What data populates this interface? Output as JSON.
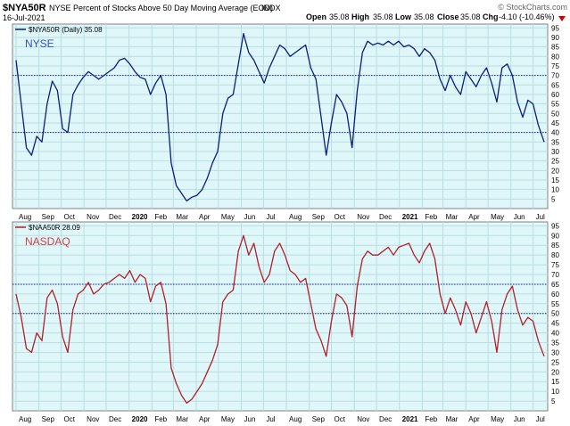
{
  "header": {
    "symbol": "$NYA50R",
    "description": "NYSE Percent of Stocks Above 50 Day Moving Average (EOD)",
    "exchange": "INDX",
    "date": "16-Jul-2021",
    "copyright": "© StockCharts.com",
    "quote": {
      "open_label": "Open",
      "open": "35.08",
      "high_label": "High",
      "high": "35.08",
      "low_label": "Low",
      "low": "35.08",
      "close_label": "Close",
      "close": "35.08",
      "chg_label": "Chg",
      "chg": "-4.10 (-10.46%)"
    }
  },
  "colors": {
    "panel_bg": "#e0f7fa",
    "nyse_line": "#0b1f7a",
    "nasdaq_line": "#b0202a",
    "grid": "#b8dde2",
    "reference_line": "#1a237e",
    "label_nyse": "#3050c8",
    "label_nasdaq": "#d04040"
  },
  "chart_data": [
    {
      "type": "line",
      "legend_text": "$NYA50R (Daily) 35.08",
      "panel_label": "NYSE",
      "y_ticks": [
        5,
        10,
        15,
        20,
        25,
        30,
        35,
        40,
        45,
        50,
        55,
        60,
        65,
        70,
        75,
        80,
        85,
        90,
        95
      ],
      "ylim": [
        0,
        97
      ],
      "reference_lines": [
        40,
        70
      ],
      "grid": true,
      "x_labels": [
        "Aug",
        "Sep",
        "Oct",
        "Nov",
        "Dec",
        "2020",
        "Feb",
        "Mar",
        "Apr",
        "May",
        "Jun",
        "Jul",
        "Aug",
        "Sep",
        "Oct",
        "Nov",
        "Dec",
        "2021",
        "Feb",
        "Mar",
        "Apr",
        "May",
        "Jun",
        "Jul"
      ],
      "x_label_bold": [
        "2020",
        "2021"
      ],
      "x": [
        "2019-08-01",
        "2019-08-08",
        "2019-08-15",
        "2019-08-22",
        "2019-08-29",
        "2019-09-05",
        "2019-09-12",
        "2019-09-19",
        "2019-09-26",
        "2019-10-03",
        "2019-10-10",
        "2019-10-17",
        "2019-10-24",
        "2019-10-31",
        "2019-11-07",
        "2019-11-14",
        "2019-11-21",
        "2019-11-28",
        "2019-12-05",
        "2019-12-12",
        "2019-12-19",
        "2019-12-26",
        "2020-01-02",
        "2020-01-09",
        "2020-01-16",
        "2020-01-23",
        "2020-01-30",
        "2020-02-06",
        "2020-02-13",
        "2020-02-20",
        "2020-02-27",
        "2020-03-05",
        "2020-03-12",
        "2020-03-19",
        "2020-03-26",
        "2020-04-02",
        "2020-04-09",
        "2020-04-16",
        "2020-04-23",
        "2020-04-30",
        "2020-05-07",
        "2020-05-14",
        "2020-05-21",
        "2020-05-28",
        "2020-06-04",
        "2020-06-11",
        "2020-06-18",
        "2020-06-25",
        "2020-07-02",
        "2020-07-09",
        "2020-07-16",
        "2020-07-23",
        "2020-07-30",
        "2020-08-06",
        "2020-08-13",
        "2020-08-20",
        "2020-08-27",
        "2020-09-03",
        "2020-09-10",
        "2020-09-17",
        "2020-09-24",
        "2020-10-01",
        "2020-10-08",
        "2020-10-15",
        "2020-10-22",
        "2020-10-29",
        "2020-11-05",
        "2020-11-12",
        "2020-11-19",
        "2020-11-26",
        "2020-12-03",
        "2020-12-10",
        "2020-12-17",
        "2020-12-24",
        "2020-12-31",
        "2021-01-07",
        "2021-01-14",
        "2021-01-21",
        "2021-01-28",
        "2021-02-04",
        "2021-02-11",
        "2021-02-18",
        "2021-02-25",
        "2021-03-04",
        "2021-03-11",
        "2021-03-18",
        "2021-03-25",
        "2021-04-01",
        "2021-04-08",
        "2021-04-15",
        "2021-04-22",
        "2021-04-29",
        "2021-05-06",
        "2021-05-13",
        "2021-05-20",
        "2021-05-27",
        "2021-06-03",
        "2021-06-10",
        "2021-06-17",
        "2021-06-24",
        "2021-07-01",
        "2021-07-08",
        "2021-07-16"
      ],
      "values": [
        78,
        55,
        32,
        28,
        38,
        35,
        55,
        67,
        62,
        42,
        40,
        60,
        65,
        69,
        72,
        70,
        68,
        70,
        72,
        74,
        78,
        79,
        76,
        72,
        69,
        68,
        60,
        66,
        70,
        60,
        24,
        12,
        8,
        4,
        6,
        7,
        10,
        16,
        24,
        30,
        50,
        58,
        60,
        76,
        92,
        82,
        78,
        72,
        66,
        74,
        80,
        86,
        84,
        80,
        82,
        84,
        86,
        74,
        68,
        48,
        28,
        45,
        60,
        56,
        50,
        32,
        62,
        82,
        88,
        86,
        87,
        86,
        88,
        86,
        88,
        85,
        86,
        84,
        80,
        84,
        82,
        78,
        68,
        62,
        70,
        64,
        60,
        72,
        68,
        64,
        70,
        74,
        66,
        56,
        74,
        76,
        70,
        56,
        48,
        57,
        55,
        44,
        35
      ]
    },
    {
      "type": "line",
      "legend_text": "$NAA50R 28.09",
      "panel_label": "NASDAQ",
      "y_ticks": [
        5,
        10,
        15,
        20,
        25,
        30,
        35,
        40,
        45,
        50,
        55,
        60,
        65,
        70,
        75,
        80,
        85,
        90,
        95
      ],
      "ylim": [
        0,
        97
      ],
      "reference_lines": [
        50,
        65
      ],
      "grid": true,
      "x_labels": [
        "Aug",
        "Sep",
        "Oct",
        "Nov",
        "Dec",
        "2020",
        "Feb",
        "Mar",
        "Apr",
        "May",
        "Jun",
        "Jul",
        "Aug",
        "Sep",
        "Oct",
        "Nov",
        "Dec",
        "2021",
        "Feb",
        "Mar",
        "Apr",
        "May",
        "Jun",
        "Jul"
      ],
      "x_label_bold": [
        "2020",
        "2021"
      ],
      "x": [
        "2019-08-01",
        "2019-08-08",
        "2019-08-15",
        "2019-08-22",
        "2019-08-29",
        "2019-09-05",
        "2019-09-12",
        "2019-09-19",
        "2019-09-26",
        "2019-10-03",
        "2019-10-10",
        "2019-10-17",
        "2019-10-24",
        "2019-10-31",
        "2019-11-07",
        "2019-11-14",
        "2019-11-21",
        "2019-11-28",
        "2019-12-05",
        "2019-12-12",
        "2019-12-19",
        "2019-12-26",
        "2020-01-02",
        "2020-01-09",
        "2020-01-16",
        "2020-01-23",
        "2020-01-30",
        "2020-02-06",
        "2020-02-13",
        "2020-02-20",
        "2020-02-27",
        "2020-03-05",
        "2020-03-12",
        "2020-03-19",
        "2020-03-26",
        "2020-04-02",
        "2020-04-09",
        "2020-04-16",
        "2020-04-23",
        "2020-04-30",
        "2020-05-07",
        "2020-05-14",
        "2020-05-21",
        "2020-05-28",
        "2020-06-04",
        "2020-06-11",
        "2020-06-18",
        "2020-06-25",
        "2020-07-02",
        "2020-07-09",
        "2020-07-16",
        "2020-07-23",
        "2020-07-30",
        "2020-08-06",
        "2020-08-13",
        "2020-08-20",
        "2020-08-27",
        "2020-09-03",
        "2020-09-10",
        "2020-09-17",
        "2020-09-24",
        "2020-10-01",
        "2020-10-08",
        "2020-10-15",
        "2020-10-22",
        "2020-10-29",
        "2020-11-05",
        "2020-11-12",
        "2020-11-19",
        "2020-11-26",
        "2020-12-03",
        "2020-12-10",
        "2020-12-17",
        "2020-12-24",
        "2020-12-31",
        "2021-01-07",
        "2021-01-14",
        "2021-01-21",
        "2021-01-28",
        "2021-02-04",
        "2021-02-11",
        "2021-02-18",
        "2021-02-25",
        "2021-03-04",
        "2021-03-11",
        "2021-03-18",
        "2021-03-25",
        "2021-04-01",
        "2021-04-08",
        "2021-04-15",
        "2021-04-22",
        "2021-04-29",
        "2021-05-06",
        "2021-05-13",
        "2021-05-20",
        "2021-05-27",
        "2021-06-03",
        "2021-06-10",
        "2021-06-17",
        "2021-06-24",
        "2021-07-01",
        "2021-07-08",
        "2021-07-16"
      ],
      "values": [
        60,
        48,
        32,
        30,
        40,
        36,
        58,
        62,
        55,
        38,
        30,
        52,
        60,
        62,
        66,
        60,
        62,
        65,
        66,
        68,
        70,
        68,
        72,
        66,
        70,
        68,
        56,
        64,
        66,
        55,
        22,
        14,
        8,
        4,
        6,
        10,
        14,
        20,
        26,
        34,
        56,
        60,
        62,
        82,
        90,
        80,
        86,
        74,
        66,
        70,
        82,
        86,
        80,
        72,
        70,
        66,
        68,
        55,
        42,
        36,
        28,
        46,
        60,
        58,
        54,
        38,
        64,
        78,
        82,
        80,
        80,
        82,
        84,
        80,
        84,
        85,
        86,
        80,
        76,
        82,
        86,
        78,
        60,
        50,
        58,
        52,
        44,
        56,
        50,
        40,
        48,
        56,
        46,
        30,
        52,
        60,
        64,
        52,
        44,
        48,
        46,
        36,
        28
      ]
    }
  ]
}
